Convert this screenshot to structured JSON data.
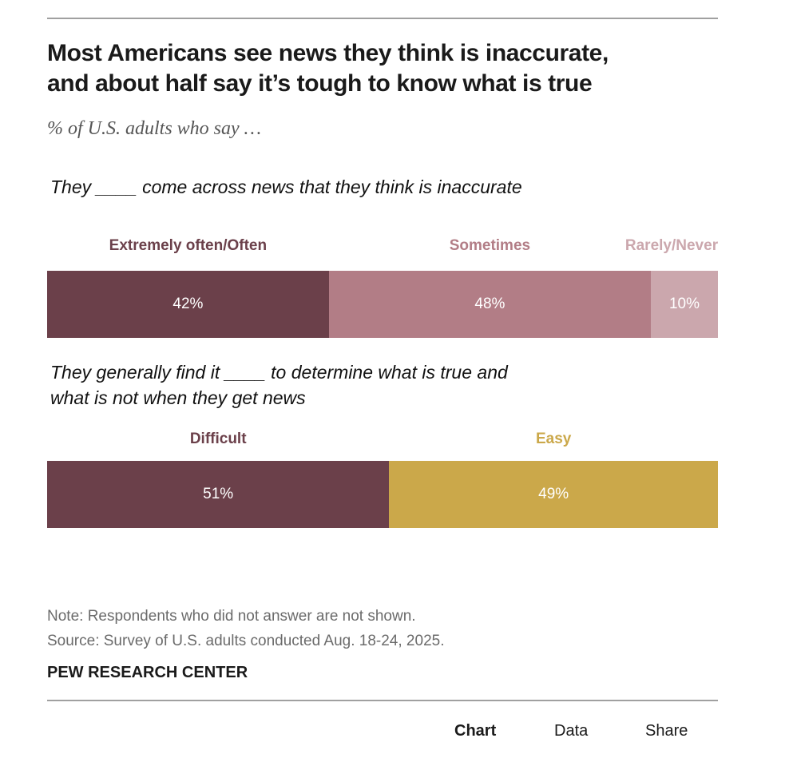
{
  "header": {
    "title_line1": "Most Americans see news they think is inaccurate,",
    "title_line2": "and about half say it’s tough to know what is true",
    "subtitle": "% of U.S. adults who say …"
  },
  "chart_data": [
    {
      "type": "bar",
      "orientation": "horizontal-stacked",
      "title": "They ____ come across news that they think is inaccurate",
      "categories": [
        "Extremely often/Often",
        "Sometimes",
        "Rarely/Never"
      ],
      "values": [
        42,
        48,
        10
      ],
      "value_labels": [
        "42%",
        "48%",
        "10%"
      ],
      "colors": [
        "#6b404a",
        "#b27d86",
        "#cba7ad"
      ],
      "xlim": [
        0,
        100
      ],
      "unit": "%"
    },
    {
      "type": "bar",
      "orientation": "horizontal-stacked",
      "title_line1": "They generally find it ____ to determine what is true and",
      "title_line2": "what is not when they get news",
      "categories": [
        "Difficult",
        "Easy"
      ],
      "values": [
        51,
        49
      ],
      "value_labels": [
        "51%",
        "49%"
      ],
      "colors": [
        "#6b404a",
        "#cba84a"
      ],
      "xlim": [
        0,
        100
      ],
      "unit": "%"
    }
  ],
  "footer": {
    "note": "Note: Respondents who did not answer are not shown.",
    "source": "Source: Survey of U.S. adults conducted Aug. 18-24, 2025.",
    "brand": "PEW RESEARCH CENTER"
  },
  "tabs": [
    {
      "label": "Chart",
      "active": true
    },
    {
      "label": "Data",
      "active": false
    },
    {
      "label": "Share",
      "active": false
    }
  ]
}
